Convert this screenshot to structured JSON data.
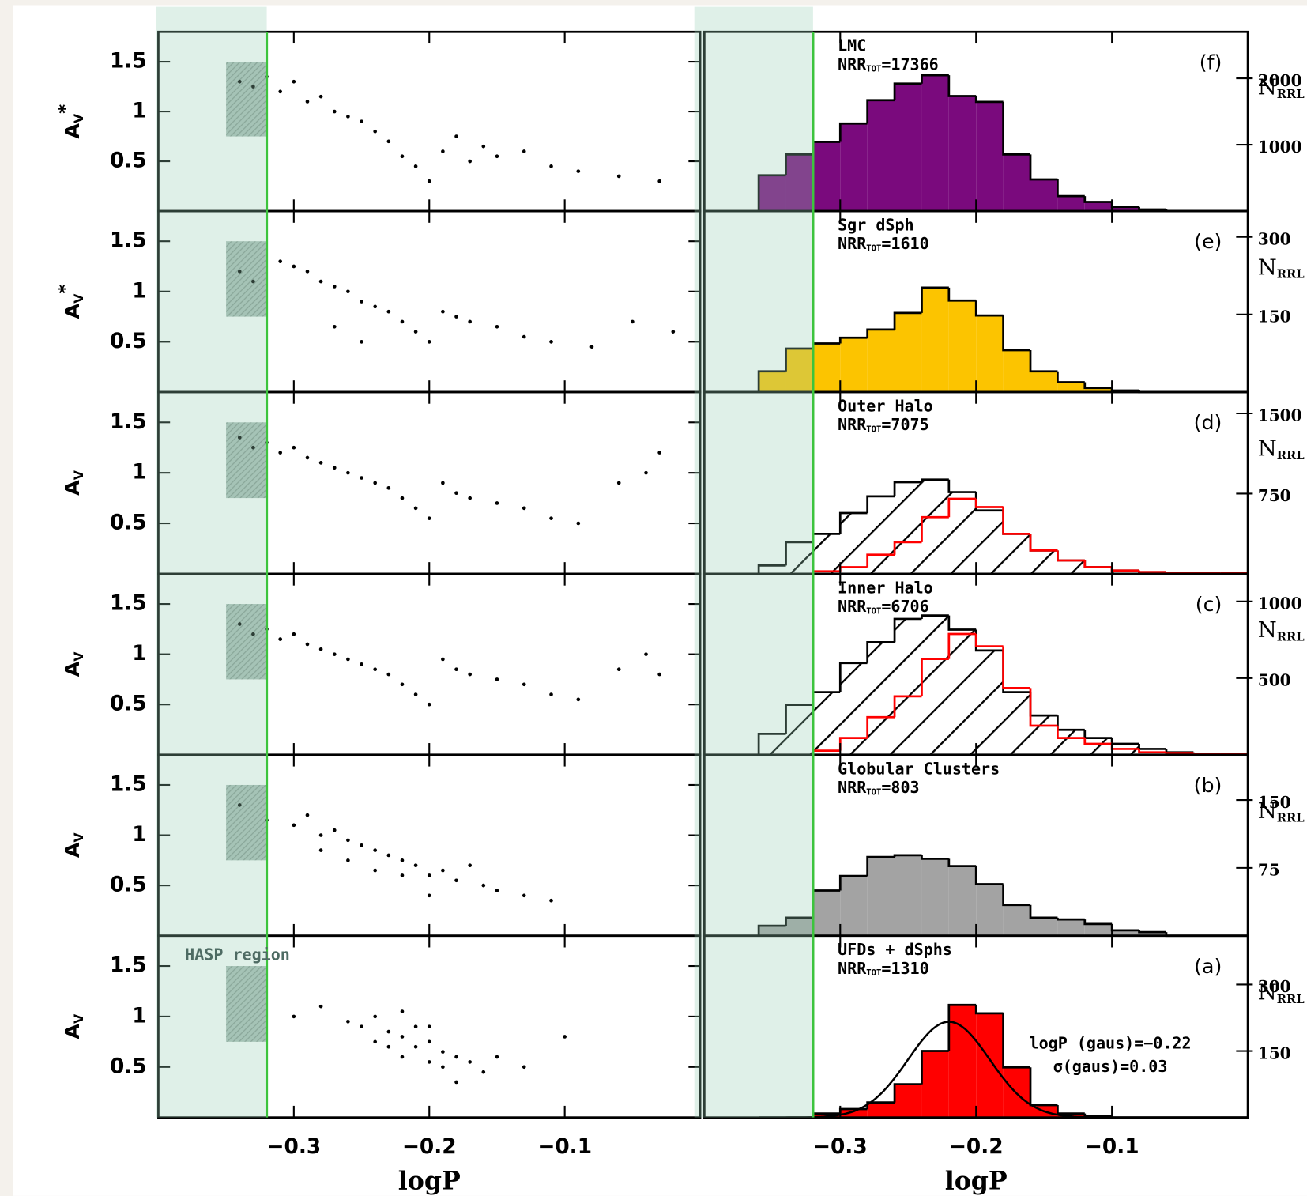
{
  "hasp": {
    "logP_limit": -0.32,
    "box_logP": [
      -0.35,
      -0.32
    ],
    "box_Av": [
      0.75,
      1.5
    ],
    "label": "HASP region"
  },
  "chart_data": [
    {
      "type": "scatter",
      "ylabel": "A",
      "ylabel_sub": "V",
      "ylabel_sup": "*",
      "xlim": [
        -0.4,
        0
      ],
      "ylim": [
        0,
        1.8
      ],
      "xticks": [
        -0.3,
        -0.2,
        -0.1
      ],
      "yticks": [
        0.5,
        1,
        1.5
      ],
      "color": "#000000",
      "x": [
        -0.34,
        -0.33,
        -0.32,
        -0.31,
        -0.3,
        -0.29,
        -0.28,
        -0.27,
        -0.26,
        -0.25,
        -0.24,
        -0.23,
        -0.22,
        -0.21,
        -0.2,
        -0.19,
        -0.18,
        -0.17,
        -0.16,
        -0.15,
        -0.13,
        -0.11,
        -0.09,
        -0.06,
        -0.03
      ],
      "y": [
        1.3,
        1.25,
        1.35,
        1.2,
        1.3,
        1.1,
        1.15,
        1.0,
        0.95,
        0.9,
        0.8,
        0.7,
        0.55,
        0.45,
        0.3,
        0.6,
        0.75,
        0.5,
        0.65,
        0.55,
        0.6,
        0.45,
        0.4,
        0.35,
        0.3
      ]
    },
    {
      "type": "histogram",
      "title": "LMC",
      "count_label": "NRR",
      "count_sub": "TOT",
      "count_text": "=17366",
      "panel": "(f)",
      "ylabel": "N",
      "ylabel_sub": "RRL",
      "xlim": [
        -0.4,
        0
      ],
      "ylim": [
        0,
        2700
      ],
      "xticks": [
        -0.3,
        -0.2,
        -0.1
      ],
      "yticks": [
        1000,
        2000
      ],
      "bins": [
        -0.36,
        -0.34,
        -0.32,
        -0.3,
        -0.28,
        -0.26,
        -0.24,
        -0.22,
        -0.2,
        -0.18,
        -0.16,
        -0.14,
        -0.12,
        -0.1,
        -0.08,
        -0.06,
        -0.04,
        -0.02,
        0
      ],
      "series": [
        {
          "color": "#7a0a7d",
          "edgecolor": "#000000",
          "values": [
            540,
            854,
            1042,
            1319,
            1670,
            1921,
            2047,
            1733,
            1645,
            854,
            477,
            226,
            138,
            63,
            25,
            0,
            0,
            0
          ]
        }
      ]
    },
    {
      "type": "scatter",
      "ylabel": "A",
      "ylabel_sub": "V",
      "ylabel_sup": "*",
      "xlim": [
        -0.4,
        0
      ],
      "ylim": [
        0,
        1.8
      ],
      "xticks": [
        -0.3,
        -0.2,
        -0.1
      ],
      "yticks": [
        0.5,
        1,
        1.5
      ],
      "color": "#000000",
      "x": [
        -0.34,
        -0.33,
        -0.31,
        -0.3,
        -0.29,
        -0.28,
        -0.27,
        -0.26,
        -0.25,
        -0.24,
        -0.23,
        -0.22,
        -0.21,
        -0.2,
        -0.19,
        -0.18,
        -0.17,
        -0.15,
        -0.13,
        -0.11,
        -0.08,
        -0.05,
        -0.02,
        -0.25,
        -0.27
      ],
      "y": [
        1.2,
        1.1,
        1.3,
        1.25,
        1.2,
        1.1,
        1.05,
        1.0,
        0.9,
        0.85,
        0.8,
        0.7,
        0.6,
        0.5,
        0.8,
        0.75,
        0.7,
        0.65,
        0.55,
        0.5,
        0.45,
        0.7,
        0.6,
        0.5,
        0.65
      ]
    },
    {
      "type": "histogram",
      "title": "Sgr dSph",
      "count_label": "NRR",
      "count_sub": "TOT",
      "count_text": "=1610",
      "panel": "(e)",
      "ylabel": "N",
      "ylabel_sub": "RRL",
      "xlim": [
        -0.4,
        0
      ],
      "ylim": [
        0,
        350
      ],
      "xticks": [
        -0.3,
        -0.2,
        -0.1
      ],
      "yticks": [
        150,
        300
      ],
      "bins": [
        -0.36,
        -0.34,
        -0.32,
        -0.3,
        -0.28,
        -0.26,
        -0.24,
        -0.22,
        -0.2,
        -0.18,
        -0.16,
        -0.14,
        -0.12,
        -0.1,
        -0.08,
        -0.06,
        -0.04,
        -0.02,
        0
      ],
      "series": [
        {
          "color": "#fcc400",
          "edgecolor": "#000000",
          "values": [
            40,
            84,
            94,
            105,
            121,
            153,
            202,
            177,
            148,
            81,
            40,
            19,
            8,
            3,
            0,
            0,
            0,
            0
          ]
        }
      ]
    },
    {
      "type": "scatter",
      "ylabel": "A",
      "ylabel_sub": "V",
      "xlim": [
        -0.4,
        0
      ],
      "ylim": [
        0,
        1.8
      ],
      "xticks": [
        -0.3,
        -0.2,
        -0.1
      ],
      "yticks": [
        0.5,
        1,
        1.5
      ],
      "color": "#000000",
      "x": [
        -0.34,
        -0.33,
        -0.32,
        -0.31,
        -0.3,
        -0.29,
        -0.28,
        -0.27,
        -0.26,
        -0.25,
        -0.24,
        -0.23,
        -0.22,
        -0.21,
        -0.2,
        -0.19,
        -0.18,
        -0.17,
        -0.15,
        -0.13,
        -0.11,
        -0.09,
        -0.06,
        -0.04,
        -0.03
      ],
      "y": [
        1.35,
        1.25,
        1.3,
        1.2,
        1.25,
        1.15,
        1.1,
        1.05,
        1.0,
        0.95,
        0.9,
        0.85,
        0.75,
        0.65,
        0.55,
        0.9,
        0.8,
        0.75,
        0.7,
        0.65,
        0.55,
        0.5,
        0.9,
        1.0,
        1.2
      ]
    },
    {
      "type": "histogram",
      "title": "Outer Halo",
      "count_label": "NRR",
      "count_sub": "TOT",
      "count_text": "=7075",
      "panel": "(d)",
      "ylabel": "N",
      "ylabel_sub": "RRL",
      "xlim": [
        -0.4,
        0
      ],
      "ylim": [
        0,
        1700
      ],
      "xticks": [
        -0.3,
        -0.2,
        -0.1
      ],
      "yticks": [
        750,
        1500
      ],
      "bins": [
        -0.36,
        -0.34,
        -0.32,
        -0.3,
        -0.28,
        -0.26,
        -0.24,
        -0.22,
        -0.2,
        -0.18,
        -0.16,
        -0.14,
        -0.12,
        -0.1,
        -0.08,
        -0.06,
        -0.04,
        -0.02,
        0
      ],
      "series": [
        {
          "color": "#ffffff",
          "edgecolor": "#000000",
          "hatch": true,
          "values": [
            78,
            296,
            374,
            569,
            725,
            857,
            881,
            764,
            593,
            374,
            218,
            125,
            62,
            31,
            16,
            8,
            0,
            0
          ]
        },
        {
          "edgecolor": "#ff0000",
          "values": [
            0,
            0,
            23,
            62,
            179,
            296,
            530,
            702,
            624,
            374,
            218,
            125,
            62,
            31,
            16,
            8,
            4,
            4
          ]
        }
      ]
    },
    {
      "type": "scatter",
      "ylabel": "A",
      "ylabel_sub": "V",
      "xlim": [
        -0.4,
        0
      ],
      "ylim": [
        0,
        1.8
      ],
      "xticks": [
        -0.3,
        -0.2,
        -0.1
      ],
      "yticks": [
        0.5,
        1,
        1.5
      ],
      "color": "#000000",
      "x": [
        -0.34,
        -0.33,
        -0.32,
        -0.31,
        -0.3,
        -0.29,
        -0.28,
        -0.27,
        -0.26,
        -0.25,
        -0.24,
        -0.23,
        -0.22,
        -0.21,
        -0.2,
        -0.19,
        -0.18,
        -0.17,
        -0.15,
        -0.13,
        -0.11,
        -0.09,
        -0.06,
        -0.04,
        -0.03
      ],
      "y": [
        1.3,
        1.2,
        1.25,
        1.15,
        1.2,
        1.1,
        1.05,
        1.0,
        0.95,
        0.9,
        0.85,
        0.8,
        0.7,
        0.6,
        0.5,
        0.95,
        0.85,
        0.8,
        0.75,
        0.7,
        0.6,
        0.55,
        0.85,
        1.0,
        0.8
      ]
    },
    {
      "type": "histogram",
      "title": "Inner Halo",
      "count_label": "NRR",
      "count_sub": "TOT",
      "count_text": "=6706",
      "panel": "(c)",
      "ylabel": "N",
      "ylabel_sub": "RRL",
      "xlim": [
        -0.4,
        0
      ],
      "ylim": [
        0,
        1180
      ],
      "xticks": [
        -0.3,
        -0.2,
        -0.1
      ],
      "yticks": [
        500,
        1000
      ],
      "bins": [
        -0.36,
        -0.34,
        -0.32,
        -0.3,
        -0.28,
        -0.26,
        -0.24,
        -0.22,
        -0.2,
        -0.18,
        -0.16,
        -0.14,
        -0.12,
        -0.1,
        -0.08,
        -0.06,
        -0.04,
        -0.02,
        0
      ],
      "series": [
        {
          "color": "#ffffff",
          "edgecolor": "#000000",
          "hatch": true,
          "values": [
            136,
            326,
            408,
            598,
            734,
            886,
            908,
            816,
            680,
            408,
            256,
            163,
            109,
            71,
            38,
            16,
            5,
            0
          ]
        },
        {
          "edgecolor": "#ff0000",
          "values": [
            0,
            0,
            27,
            109,
            245,
            381,
            625,
            788,
            707,
            435,
            190,
            109,
            71,
            38,
            16,
            11,
            5,
            5
          ]
        }
      ]
    },
    {
      "type": "scatter",
      "ylabel": "A",
      "ylabel_sub": "V",
      "xlim": [
        -0.4,
        0
      ],
      "ylim": [
        0,
        1.8
      ],
      "xticks": [
        -0.3,
        -0.2,
        -0.1
      ],
      "yticks": [
        0.5,
        1,
        1.5
      ],
      "color": "#000000",
      "x": [
        -0.34,
        -0.32,
        -0.3,
        -0.29,
        -0.28,
        -0.27,
        -0.26,
        -0.25,
        -0.24,
        -0.23,
        -0.22,
        -0.21,
        -0.2,
        -0.19,
        -0.18,
        -0.17,
        -0.16,
        -0.15,
        -0.13,
        -0.11,
        -0.26,
        -0.24,
        -0.22,
        -0.2,
        -0.28
      ],
      "y": [
        1.3,
        1.15,
        1.1,
        1.2,
        1.0,
        1.05,
        0.95,
        0.9,
        0.85,
        0.8,
        0.75,
        0.7,
        0.6,
        0.65,
        0.55,
        0.7,
        0.5,
        0.45,
        0.4,
        0.35,
        0.75,
        0.65,
        0.6,
        0.4,
        0.85
      ]
    },
    {
      "type": "histogram",
      "title": "Globular Clusters",
      "count_label": "NRR",
      "count_sub": "TOT",
      "count_text": "=803",
      "panel": "(b)",
      "ylabel": "N",
      "ylabel_sub": "RRL",
      "xlim": [
        -0.4,
        0
      ],
      "ylim": [
        0,
        200
      ],
      "xticks": [
        -0.3,
        -0.2,
        -0.1
      ],
      "yticks": [
        75,
        150
      ],
      "bins": [
        -0.36,
        -0.34,
        -0.32,
        -0.3,
        -0.28,
        -0.26,
        -0.24,
        -0.22,
        -0.2,
        -0.18,
        -0.16,
        -0.14,
        -0.12,
        -0.1,
        -0.08,
        -0.06,
        -0.04,
        -0.02,
        0
      ],
      "series": [
        {
          "color": "#a3a3a3",
          "edgecolor": "#000000",
          "values": [
            11,
            20,
            50,
            66,
            87,
            89,
            85,
            77,
            57,
            34,
            20,
            18,
            13,
            6,
            4,
            0,
            0,
            0
          ]
        }
      ]
    },
    {
      "type": "scatter",
      "ylabel": "A",
      "ylabel_sub": "V",
      "xlabel": "logP",
      "xlim": [
        -0.4,
        0
      ],
      "ylim": [
        0,
        1.8
      ],
      "xticks": [
        {
          "value": -0.3,
          "label": "−0.3"
        },
        {
          "value": -0.2,
          "label": "−0.2"
        },
        {
          "value": -0.1,
          "label": "−0.1"
        }
      ],
      "yticks": [
        0.5,
        1,
        1.5
      ],
      "color": "#000000",
      "x": [
        -0.3,
        -0.28,
        -0.26,
        -0.25,
        -0.24,
        -0.23,
        -0.23,
        -0.22,
        -0.22,
        -0.21,
        -0.21,
        -0.2,
        -0.2,
        -0.19,
        -0.19,
        -0.18,
        -0.17,
        -0.16,
        -0.15,
        -0.13,
        -0.24,
        -0.22,
        -0.2,
        -0.18,
        -0.1
      ],
      "y": [
        1.0,
        1.1,
        0.95,
        0.9,
        1.0,
        0.85,
        0.7,
        0.8,
        0.6,
        0.9,
        0.7,
        0.75,
        0.55,
        0.65,
        0.5,
        0.6,
        0.55,
        0.45,
        0.6,
        0.5,
        0.75,
        1.05,
        0.9,
        0.35,
        0.8
      ]
    },
    {
      "type": "histogram",
      "title": "UFDs + dSphs",
      "count_label": "NRR",
      "count_sub": "TOT",
      "count_text": "=1310",
      "panel": "(a)",
      "ylabel": "N",
      "ylabel_sub": "RRL",
      "xlabel": "logP",
      "xlim": [
        -0.4,
        0
      ],
      "ylim": [
        0,
        410
      ],
      "xticks": [
        {
          "value": -0.3,
          "label": "−0.3"
        },
        {
          "value": -0.2,
          "label": "−0.2"
        },
        {
          "value": -0.1,
          "label": "−0.1"
        }
      ],
      "yticks": [
        150,
        300
      ],
      "bins": [
        -0.36,
        -0.34,
        -0.32,
        -0.3,
        -0.28,
        -0.26,
        -0.24,
        -0.22,
        -0.2,
        -0.18,
        -0.16,
        -0.14,
        -0.12,
        -0.1,
        -0.08,
        -0.06,
        -0.04,
        -0.02,
        0
      ],
      "series": [
        {
          "color": "#ff0000",
          "edgecolor": "#000000",
          "values": [
            0,
            0,
            9,
            19,
            34,
            75,
            150,
            254,
            235,
            113,
            28,
            9,
            4,
            0,
            0,
            0,
            0,
            0
          ]
        }
      ],
      "fit": {
        "mu": -0.22,
        "sigma": 0.03,
        "peak": 216
      },
      "fit_label": "logP (gaus)=−0.22",
      "sigma_label": "σ(gaus)=0.03"
    }
  ]
}
